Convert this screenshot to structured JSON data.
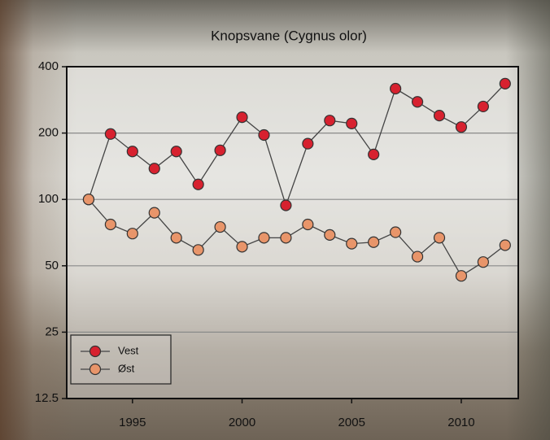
{
  "chart_data": {
    "type": "line",
    "title": "Knopsvane (Cygnus olor)",
    "x": [
      1993,
      1994,
      1995,
      1996,
      1997,
      1998,
      1999,
      2000,
      2001,
      2002,
      2003,
      2004,
      2005,
      2006,
      2007,
      2008,
      2009,
      2010,
      2011,
      2012
    ],
    "series": [
      {
        "name": "Vest",
        "color": "#d7212f",
        "values": [
          100,
          198,
          165,
          138,
          165,
          117,
          167,
          236,
          196,
          94,
          179,
          228,
          221,
          160,
          318,
          277,
          240,
          213,
          264,
          335
        ]
      },
      {
        "name": "Øst",
        "color": "#e8956a",
        "values": [
          100,
          77,
          70,
          87,
          67,
          59,
          75,
          61,
          67,
          67,
          77,
          69,
          63,
          64,
          71,
          55,
          67,
          45,
          52,
          62
        ]
      }
    ],
    "xlim": [
      1992,
      2012.6
    ],
    "xticks": [
      1995,
      2000,
      2005,
      2010
    ],
    "ylim": [
      12.5,
      400
    ],
    "yticks": [
      12.5,
      25,
      50,
      100,
      200,
      400
    ],
    "log_scale": true,
    "grid": true,
    "legend": "lower left"
  }
}
